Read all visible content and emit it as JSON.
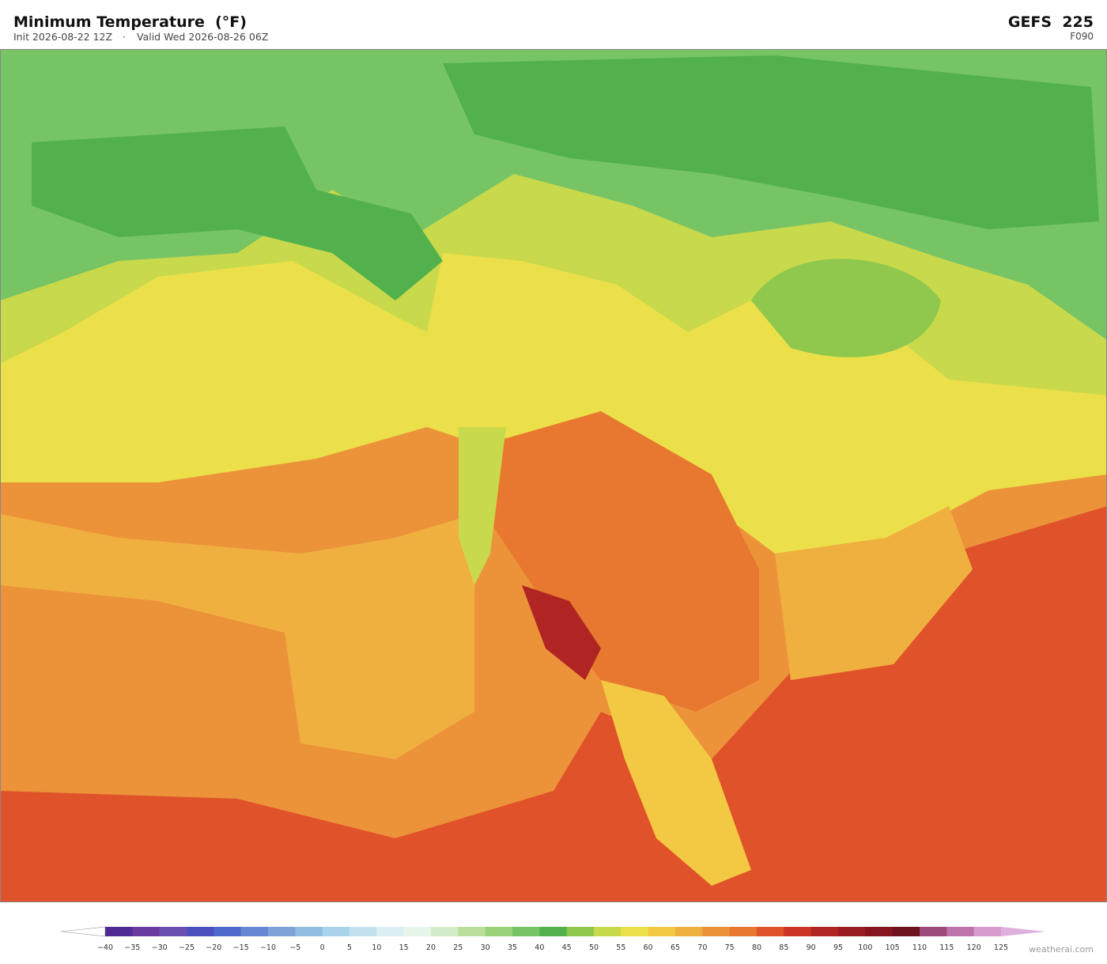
{
  "header": {
    "title": "Minimum Temperature  (°F)",
    "init": "Init 2026-08-22 12Z",
    "separator": "·",
    "valid": "Valid Wed 2026-08-26 06Z",
    "model": "GEFS  225",
    "forecast_hour": "F090"
  },
  "colorbar": {
    "labels": [
      "−40",
      "−35",
      "−30",
      "−25",
      "−20",
      "−15",
      "−10",
      "−5",
      "0",
      "5",
      "10",
      "15",
      "20",
      "25",
      "30",
      "35",
      "40",
      "45",
      "50",
      "55",
      "60",
      "65",
      "70",
      "75",
      "80",
      "85",
      "90",
      "95",
      "100",
      "105",
      "110",
      "115",
      "120",
      "125"
    ],
    "colors": [
      "#4f2a94",
      "#6a3a9e",
      "#6b4fb0",
      "#4b4fbf",
      "#4f6acc",
      "#6787d2",
      "#7fa3d8",
      "#92bde2",
      "#a9d3ea",
      "#c2e2ef",
      "#dbeff3",
      "#e8f5ea",
      "#d5ecc8",
      "#b9df9a",
      "#9ad27a",
      "#77c465",
      "#52b14d",
      "#8fc84c",
      "#c9d94c",
      "#ebe04a",
      "#f3c842",
      "#f0b040",
      "#ec933a",
      "#e8772f",
      "#e0532a",
      "#cc3627",
      "#b12424",
      "#981c22",
      "#861520",
      "#6e1320",
      "#9c4a7a",
      "#bd74aa",
      "#d79ccd"
    ],
    "under_color": "#ffffff",
    "over_color": "#e0b0dd"
  },
  "watermark": "weatherai.com"
}
